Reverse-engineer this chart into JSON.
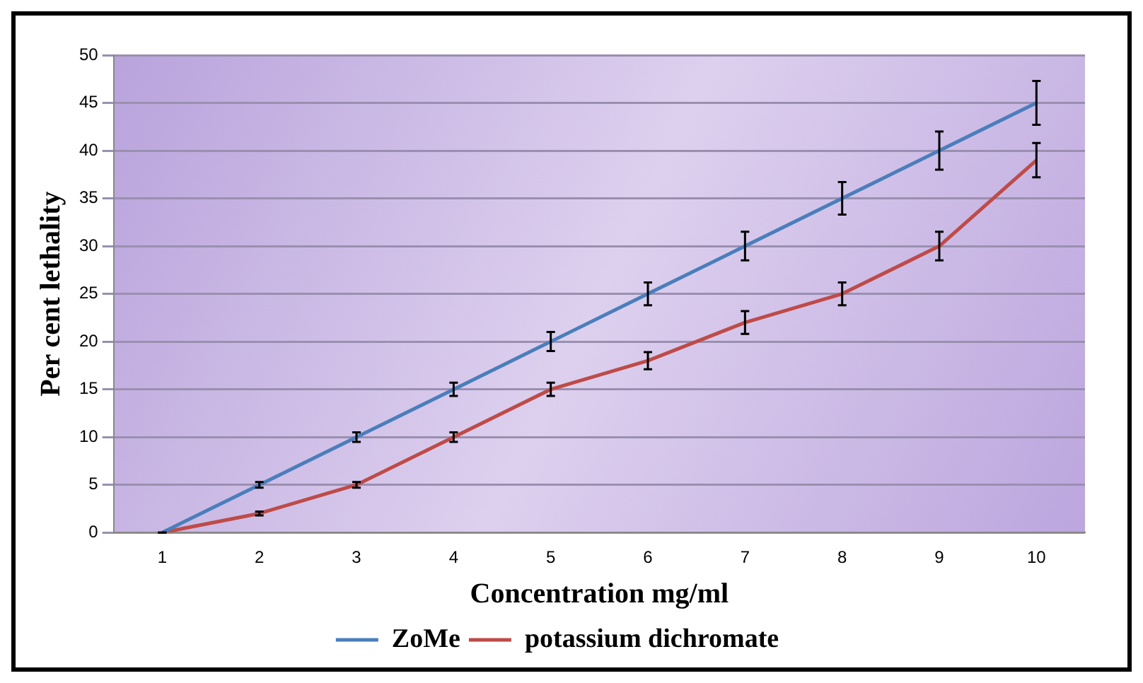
{
  "chart_data": {
    "type": "line",
    "xlabel": "Concentration mg/ml",
    "ylabel": "Per cent lethality",
    "categories": [
      "1",
      "2",
      "3",
      "4",
      "5",
      "6",
      "7",
      "8",
      "9",
      "10"
    ],
    "series": [
      {
        "name": "ZoMe",
        "color": "#4a7ebb",
        "values": [
          0,
          5,
          10,
          15,
          20,
          25,
          30,
          35,
          40,
          45
        ],
        "errors": [
          0,
          0.3,
          0.5,
          0.7,
          1,
          1.2,
          1.5,
          1.7,
          2,
          2.3
        ]
      },
      {
        "name": "potassium dichromate",
        "color": "#be4b48",
        "values": [
          0,
          2,
          5,
          10,
          15,
          18,
          22,
          25,
          30,
          39
        ],
        "errors": [
          0,
          0.2,
          0.3,
          0.5,
          0.7,
          0.9,
          1.2,
          1.2,
          1.5,
          1.8
        ]
      }
    ],
    "ylim": [
      0,
      50
    ],
    "yticks": [
      0,
      5,
      10,
      15,
      20,
      25,
      30,
      35,
      40,
      45,
      50
    ],
    "grid": "y",
    "legend": "bottom",
    "marker": "none",
    "line_style": "solid"
  }
}
